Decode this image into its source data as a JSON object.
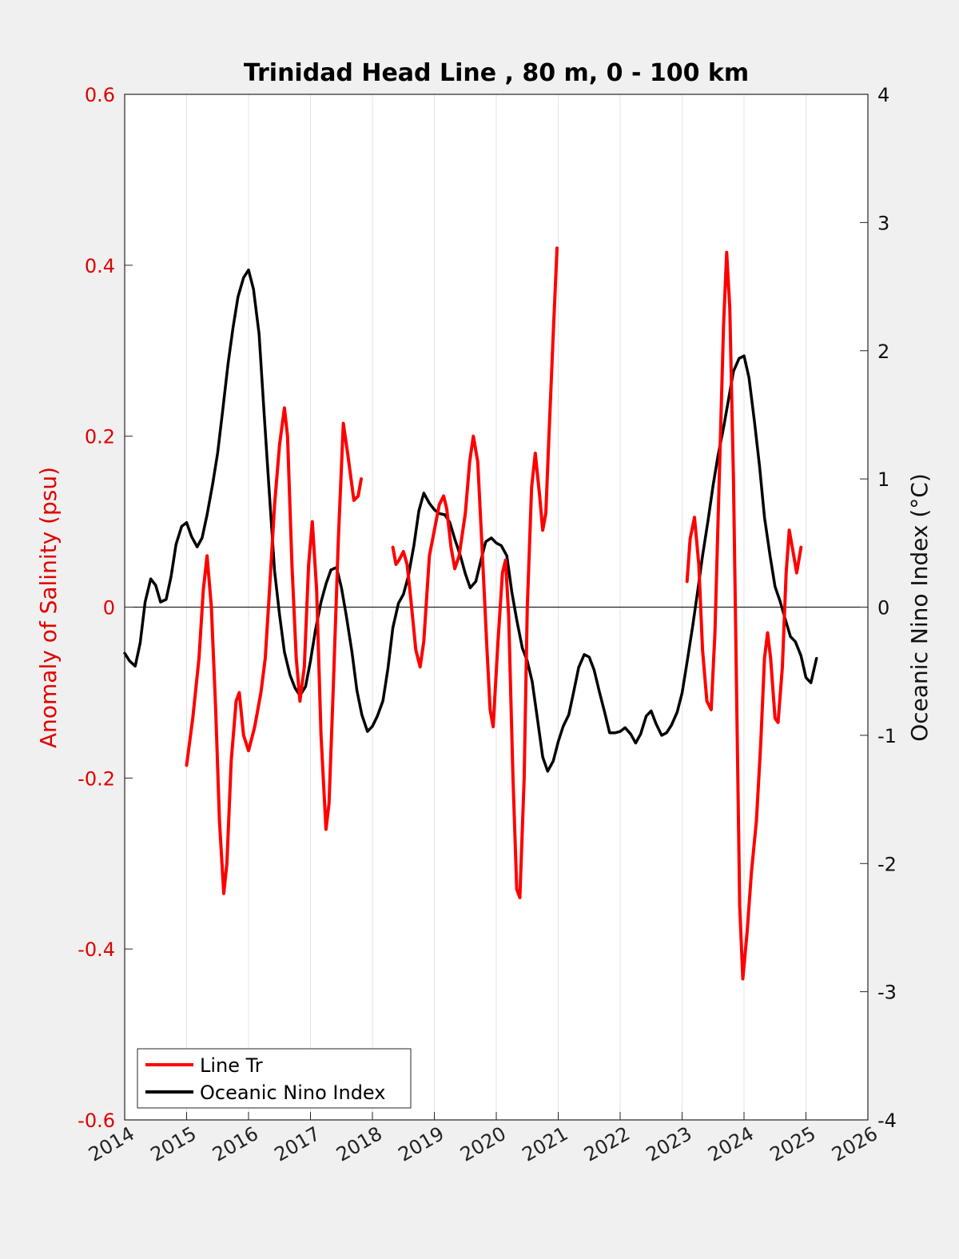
{
  "chart_data": {
    "type": "line",
    "title": "Trinidad Head Line , 80 m, 0 - 100 km",
    "xlabel": "",
    "ylabel": "Anomaly of Salinity (psu)",
    "ylabel_right": "Oceanic Nino Index (°C)",
    "xlim": [
      2014,
      2026
    ],
    "ylim": [
      -0.6,
      0.6
    ],
    "ylim_right": [
      -4,
      4
    ],
    "x_ticks": [
      "2014",
      "2015",
      "2016",
      "2017",
      "2018",
      "2019",
      "2020",
      "2021",
      "2022",
      "2023",
      "2024",
      "2025",
      "2026"
    ],
    "y_ticks_left": [
      "0.6",
      "0.4",
      "0.2",
      "0",
      "-0.2",
      "-0.4",
      "-0.6"
    ],
    "y_ticks_right": [
      "4",
      "3",
      "2",
      "1",
      "0",
      "-1",
      "-2",
      "-3",
      "-4"
    ],
    "grid": "vertical",
    "legend_position": "bottom-left",
    "series": [
      {
        "name": "Line Tr",
        "axis": "left",
        "color": "#ff0000",
        "segments": [
          [
            [
              2015.0,
              -0.185
            ],
            [
              2015.1,
              -0.13
            ],
            [
              2015.2,
              -0.06
            ],
            [
              2015.27,
              0.02
            ],
            [
              2015.33,
              0.06
            ],
            [
              2015.4,
              0.0
            ],
            [
              2015.47,
              -0.12
            ],
            [
              2015.53,
              -0.25
            ],
            [
              2015.6,
              -0.335
            ],
            [
              2015.65,
              -0.3
            ],
            [
              2015.72,
              -0.18
            ],
            [
              2015.8,
              -0.11
            ],
            [
              2015.85,
              -0.1
            ],
            [
              2015.92,
              -0.15
            ],
            [
              2016.0,
              -0.168
            ],
            [
              2016.1,
              -0.14
            ],
            [
              2016.2,
              -0.1
            ],
            [
              2016.27,
              -0.06
            ],
            [
              2016.33,
              0.01
            ],
            [
              2016.42,
              0.12
            ],
            [
              2016.5,
              0.19
            ],
            [
              2016.58,
              0.233
            ],
            [
              2016.63,
              0.2
            ],
            [
              2016.7,
              0.05
            ],
            [
              2016.77,
              -0.06
            ],
            [
              2016.83,
              -0.11
            ],
            [
              2016.9,
              -0.07
            ],
            [
              2016.97,
              0.05
            ],
            [
              2017.03,
              0.1
            ],
            [
              2017.1,
              0.02
            ],
            [
              2017.17,
              -0.15
            ],
            [
              2017.25,
              -0.26
            ],
            [
              2017.3,
              -0.23
            ],
            [
              2017.37,
              -0.09
            ],
            [
              2017.45,
              0.08
            ],
            [
              2017.53,
              0.215
            ],
            [
              2017.6,
              0.18
            ],
            [
              2017.7,
              0.125
            ],
            [
              2017.77,
              0.13
            ],
            [
              2017.82,
              0.15
            ]
          ],
          [
            [
              2018.33,
              0.07
            ],
            [
              2018.38,
              0.05
            ],
            [
              2018.43,
              0.055
            ],
            [
              2018.5,
              0.065
            ],
            [
              2018.56,
              0.05
            ],
            [
              2018.62,
              0.01
            ],
            [
              2018.7,
              -0.05
            ],
            [
              2018.77,
              -0.07
            ],
            [
              2018.83,
              -0.04
            ],
            [
              2018.92,
              0.06
            ],
            [
              2019.0,
              0.09
            ],
            [
              2019.08,
              0.12
            ],
            [
              2019.15,
              0.13
            ],
            [
              2019.2,
              0.115
            ],
            [
              2019.27,
              0.07
            ],
            [
              2019.33,
              0.045
            ],
            [
              2019.4,
              0.06
            ],
            [
              2019.5,
              0.11
            ],
            [
              2019.57,
              0.17
            ],
            [
              2019.63,
              0.2
            ],
            [
              2019.7,
              0.17
            ],
            [
              2019.77,
              0.07
            ],
            [
              2019.85,
              -0.05
            ],
            [
              2019.9,
              -0.12
            ],
            [
              2019.95,
              -0.14
            ],
            [
              2020.02,
              -0.05
            ],
            [
              2020.1,
              0.04
            ],
            [
              2020.15,
              0.055
            ],
            [
              2020.2,
              -0.01
            ],
            [
              2020.27,
              -0.2
            ],
            [
              2020.33,
              -0.33
            ],
            [
              2020.38,
              -0.34
            ],
            [
              2020.45,
              -0.2
            ],
            [
              2020.5,
              0.0
            ],
            [
              2020.57,
              0.14
            ],
            [
              2020.63,
              0.18
            ],
            [
              2020.7,
              0.13
            ],
            [
              2020.75,
              0.09
            ],
            [
              2020.8,
              0.11
            ],
            [
              2020.85,
              0.2
            ],
            [
              2020.92,
              0.32
            ],
            [
              2020.98,
              0.42
            ]
          ],
          [
            [
              2023.08,
              0.03
            ],
            [
              2023.13,
              0.08
            ],
            [
              2023.2,
              0.105
            ],
            [
              2023.27,
              0.05
            ],
            [
              2023.33,
              -0.05
            ],
            [
              2023.4,
              -0.11
            ],
            [
              2023.47,
              -0.12
            ],
            [
              2023.53,
              -0.03
            ],
            [
              2023.6,
              0.15
            ],
            [
              2023.67,
              0.33
            ],
            [
              2023.72,
              0.415
            ],
            [
              2023.77,
              0.35
            ],
            [
              2023.83,
              0.15
            ],
            [
              2023.88,
              -0.1
            ],
            [
              2023.93,
              -0.35
            ],
            [
              2023.98,
              -0.435
            ],
            [
              2024.05,
              -0.38
            ],
            [
              2024.12,
              -0.31
            ],
            [
              2024.2,
              -0.25
            ],
            [
              2024.27,
              -0.16
            ],
            [
              2024.33,
              -0.06
            ],
            [
              2024.38,
              -0.03
            ],
            [
              2024.43,
              -0.06
            ],
            [
              2024.5,
              -0.13
            ],
            [
              2024.55,
              -0.135
            ],
            [
              2024.62,
              -0.07
            ],
            [
              2024.68,
              0.04
            ],
            [
              2024.73,
              0.09
            ],
            [
              2024.78,
              0.07
            ],
            [
              2024.85,
              0.04
            ],
            [
              2024.92,
              0.07
            ]
          ]
        ]
      },
      {
        "name": "Oceanic Nino Index",
        "axis": "right",
        "color": "#000000",
        "segments": [
          [
            [
              2014.0,
              -0.36
            ],
            [
              2014.08,
              -0.42
            ],
            [
              2014.17,
              -0.46
            ],
            [
              2014.25,
              -0.28
            ],
            [
              2014.33,
              0.04
            ],
            [
              2014.42,
              0.22
            ],
            [
              2014.5,
              0.17
            ],
            [
              2014.58,
              0.04
            ],
            [
              2014.67,
              0.06
            ],
            [
              2014.75,
              0.24
            ],
            [
              2014.83,
              0.49
            ],
            [
              2014.92,
              0.63
            ],
            [
              2015.0,
              0.66
            ],
            [
              2015.08,
              0.55
            ],
            [
              2015.17,
              0.47
            ],
            [
              2015.25,
              0.54
            ],
            [
              2015.33,
              0.72
            ],
            [
              2015.42,
              0.96
            ],
            [
              2015.5,
              1.2
            ],
            [
              2015.58,
              1.52
            ],
            [
              2015.67,
              1.9
            ],
            [
              2015.75,
              2.18
            ],
            [
              2015.83,
              2.42
            ],
            [
              2015.92,
              2.57
            ],
            [
              2016.0,
              2.63
            ],
            [
              2016.08,
              2.48
            ],
            [
              2016.17,
              2.13
            ],
            [
              2016.25,
              1.52
            ],
            [
              2016.33,
              0.93
            ],
            [
              2016.42,
              0.28
            ],
            [
              2016.5,
              -0.06
            ],
            [
              2016.58,
              -0.35
            ],
            [
              2016.67,
              -0.53
            ],
            [
              2016.75,
              -0.63
            ],
            [
              2016.83,
              -0.69
            ],
            [
              2016.92,
              -0.62
            ],
            [
              2017.0,
              -0.42
            ],
            [
              2017.08,
              -0.18
            ],
            [
              2017.17,
              0.04
            ],
            [
              2017.25,
              0.18
            ],
            [
              2017.33,
              0.29
            ],
            [
              2017.42,
              0.31
            ],
            [
              2017.5,
              0.15
            ],
            [
              2017.58,
              -0.07
            ],
            [
              2017.67,
              -0.35
            ],
            [
              2017.75,
              -0.65
            ],
            [
              2017.83,
              -0.84
            ],
            [
              2017.92,
              -0.97
            ],
            [
              2018.0,
              -0.93
            ],
            [
              2018.08,
              -0.85
            ],
            [
              2018.17,
              -0.73
            ],
            [
              2018.25,
              -0.48
            ],
            [
              2018.33,
              -0.16
            ],
            [
              2018.42,
              0.03
            ],
            [
              2018.5,
              0.1
            ],
            [
              2018.58,
              0.24
            ],
            [
              2018.67,
              0.48
            ],
            [
              2018.75,
              0.75
            ],
            [
              2018.83,
              0.89
            ],
            [
              2018.92,
              0.81
            ],
            [
              2019.0,
              0.76
            ],
            [
              2019.08,
              0.73
            ],
            [
              2019.17,
              0.72
            ],
            [
              2019.25,
              0.66
            ],
            [
              2019.33,
              0.53
            ],
            [
              2019.42,
              0.4
            ],
            [
              2019.5,
              0.26
            ],
            [
              2019.58,
              0.15
            ],
            [
              2019.67,
              0.2
            ],
            [
              2019.75,
              0.36
            ],
            [
              2019.83,
              0.51
            ],
            [
              2019.92,
              0.54
            ],
            [
              2020.0,
              0.5
            ],
            [
              2020.08,
              0.48
            ],
            [
              2020.17,
              0.4
            ],
            [
              2020.25,
              0.12
            ],
            [
              2020.33,
              -0.1
            ],
            [
              2020.42,
              -0.32
            ],
            [
              2020.5,
              -0.42
            ],
            [
              2020.58,
              -0.58
            ],
            [
              2020.67,
              -0.89
            ],
            [
              2020.75,
              -1.17
            ],
            [
              2020.83,
              -1.28
            ],
            [
              2020.92,
              -1.2
            ],
            [
              2021.0,
              -1.05
            ],
            [
              2021.08,
              -0.93
            ],
            [
              2021.17,
              -0.84
            ],
            [
              2021.25,
              -0.66
            ],
            [
              2021.33,
              -0.47
            ],
            [
              2021.42,
              -0.37
            ],
            [
              2021.5,
              -0.39
            ],
            [
              2021.58,
              -0.49
            ],
            [
              2021.67,
              -0.67
            ],
            [
              2021.75,
              -0.82
            ],
            [
              2021.83,
              -0.98
            ],
            [
              2021.92,
              -0.98
            ],
            [
              2022.0,
              -0.97
            ],
            [
              2022.08,
              -0.94
            ],
            [
              2022.17,
              -0.99
            ],
            [
              2022.25,
              -1.06
            ],
            [
              2022.33,
              -0.99
            ],
            [
              2022.42,
              -0.85
            ],
            [
              2022.5,
              -0.81
            ],
            [
              2022.58,
              -0.91
            ],
            [
              2022.67,
              -1.0
            ],
            [
              2022.75,
              -0.98
            ],
            [
              2022.83,
              -0.92
            ],
            [
              2022.92,
              -0.82
            ],
            [
              2023.0,
              -0.67
            ],
            [
              2023.08,
              -0.43
            ],
            [
              2023.17,
              -0.15
            ],
            [
              2023.25,
              0.12
            ],
            [
              2023.33,
              0.4
            ],
            [
              2023.42,
              0.68
            ],
            [
              2023.5,
              0.95
            ],
            [
              2023.58,
              1.18
            ],
            [
              2023.67,
              1.4
            ],
            [
              2023.75,
              1.62
            ],
            [
              2023.83,
              1.84
            ],
            [
              2023.92,
              1.94
            ],
            [
              2024.0,
              1.96
            ],
            [
              2024.08,
              1.79
            ],
            [
              2024.17,
              1.44
            ],
            [
              2024.25,
              1.1
            ],
            [
              2024.33,
              0.7
            ],
            [
              2024.42,
              0.4
            ],
            [
              2024.5,
              0.16
            ],
            [
              2024.58,
              0.05
            ],
            [
              2024.67,
              -0.1
            ],
            [
              2024.75,
              -0.23
            ],
            [
              2024.83,
              -0.27
            ],
            [
              2024.92,
              -0.38
            ],
            [
              2025.0,
              -0.55
            ],
            [
              2025.08,
              -0.59
            ],
            [
              2025.17,
              -0.4
            ]
          ]
        ]
      }
    ]
  }
}
